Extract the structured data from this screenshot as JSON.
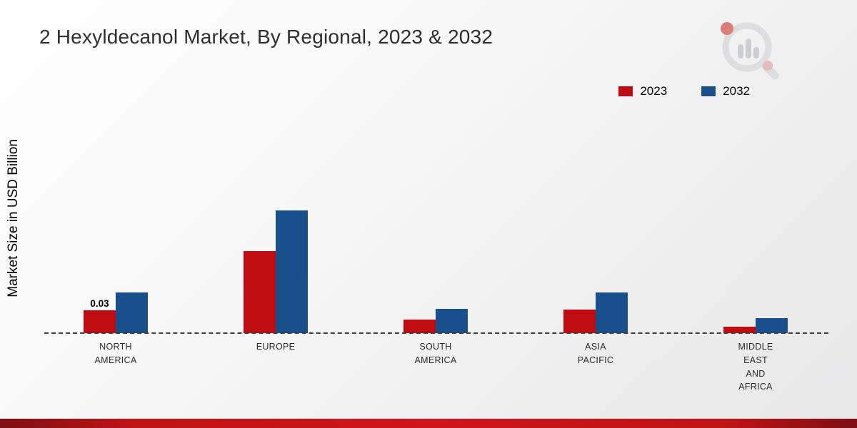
{
  "page": {
    "title": "2 Hexyldecanol Market, By Regional, 2023 & 2032",
    "ylabel": "Market Size in USD Billion"
  },
  "legend": {
    "items": [
      {
        "label": "2023",
        "color": "#c00c11"
      },
      {
        "label": "2032",
        "color": "#17508c"
      }
    ]
  },
  "chart_data": {
    "type": "bar",
    "title": "2 Hexyldecanol Market, By Regional, 2023 & 2032",
    "xlabel": "",
    "ylabel": "Market Size in USD Billion",
    "units": "USD Billion",
    "categories": [
      "NORTH AMERICA",
      "EUROPE",
      "SOUTH AMERICA",
      "ASIA PACIFIC",
      "MIDDLE EAST AND AFRICA"
    ],
    "category_lines": [
      "NORTH\nAMERICA",
      "EUROPE",
      "SOUTH\nAMERICA",
      "ASIA\nPACIFIC",
      "MIDDLE\nEAST\nAND\nAFRICA"
    ],
    "series": [
      {
        "name": "2023",
        "color": "#c00c11",
        "values": [
          0.03,
          0.108,
          0.018,
          0.031,
          0.008
        ]
      },
      {
        "name": "2032",
        "color": "#17508c",
        "values": [
          0.053,
          0.161,
          0.032,
          0.053,
          0.02
        ]
      }
    ],
    "data_labels": [
      {
        "series": "2023",
        "category_index": 0,
        "text": "0.03"
      }
    ],
    "ylim": [
      0,
      0.18
    ],
    "grid": false,
    "baseline_style": "dashed",
    "legend_position": "top-right"
  }
}
